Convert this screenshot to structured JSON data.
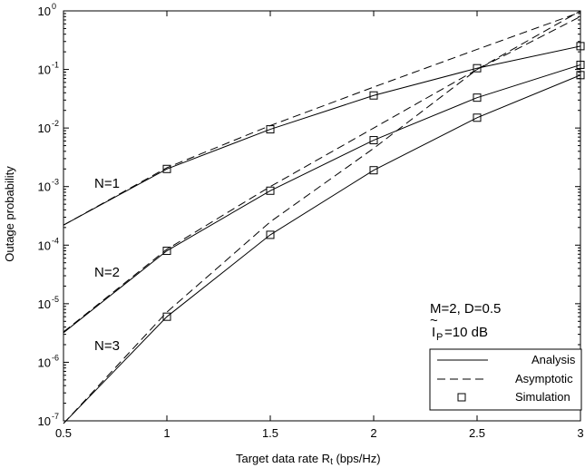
{
  "chart_data": {
    "type": "line",
    "xlabel": "Target data rate R",
    "xlabel_sub": "t",
    "xlabel_unit": " (bps/Hz)",
    "ylabel": "Outage probability",
    "xlim": [
      0.5,
      3
    ],
    "ylim": [
      1e-07,
      1
    ],
    "yscale": "log",
    "grid": false,
    "x_ticks": [
      "0.5",
      "1",
      "1.5",
      "2",
      "2.5",
      "3"
    ],
    "y_ticks": [
      {
        "base": "10",
        "exp": "-7"
      },
      {
        "base": "10",
        "exp": "-6"
      },
      {
        "base": "10",
        "exp": "-5"
      },
      {
        "base": "10",
        "exp": "-4"
      },
      {
        "base": "10",
        "exp": "-3"
      },
      {
        "base": "10",
        "exp": "-2"
      },
      {
        "base": "10",
        "exp": "-1"
      },
      {
        "base": "10",
        "exp": "0"
      }
    ],
    "analysis": [
      {
        "label": "N=1",
        "x": [
          0.5,
          1,
          1.5,
          2,
          2.5,
          3
        ],
        "y": [
          0.00022,
          0.002,
          0.0095,
          0.036,
          0.105,
          0.25
        ]
      },
      {
        "label": "N=2",
        "x": [
          0.5,
          1,
          1.5,
          2,
          2.5,
          3
        ],
        "y": [
          3.2e-06,
          8e-05,
          0.00085,
          0.0062,
          0.033,
          0.12
        ]
      },
      {
        "label": "N=3",
        "x": [
          0.5,
          1,
          1.5,
          2,
          2.5,
          3
        ],
        "y": [
          9e-08,
          6e-06,
          0.00015,
          0.0019,
          0.015,
          0.08
        ]
      }
    ],
    "asymptotic": [
      {
        "x": [
          0.5,
          1,
          1.5,
          2,
          2.5,
          3
        ],
        "y": [
          0.00022,
          0.0021,
          0.011,
          0.05,
          0.22,
          0.95
        ]
      },
      {
        "x": [
          0.5,
          1,
          1.5,
          2,
          2.5,
          3
        ],
        "y": [
          3.3e-06,
          8.5e-05,
          0.001,
          0.01,
          0.1,
          0.8
        ]
      },
      {
        "x": [
          0.5,
          1,
          1.5,
          2,
          2.5,
          3
        ],
        "y": [
          9e-08,
          7.2e-06,
          0.00025,
          0.0045,
          0.1,
          1.0
        ]
      }
    ],
    "simulation": [
      {
        "x": [
          1,
          1.5,
          2,
          2.5,
          3
        ],
        "y": [
          0.002,
          0.0095,
          0.036,
          0.105,
          0.25
        ]
      },
      {
        "x": [
          1,
          1.5,
          2,
          2.5,
          3
        ],
        "y": [
          8e-05,
          0.00085,
          0.0062,
          0.033,
          0.12
        ]
      },
      {
        "x": [
          1,
          1.5,
          2,
          2.5,
          3
        ],
        "y": [
          6e-06,
          0.00015,
          0.0019,
          0.015,
          0.08
        ]
      }
    ],
    "params_line1": "M=2, D=0.5",
    "params_line2_sym": "I",
    "params_line2_sub": "P",
    "params_line2_rest": "=10 dB",
    "legend": [
      "Analysis",
      "Asymptotic",
      "Simulation"
    ],
    "legend_position": "bottom-right"
  }
}
